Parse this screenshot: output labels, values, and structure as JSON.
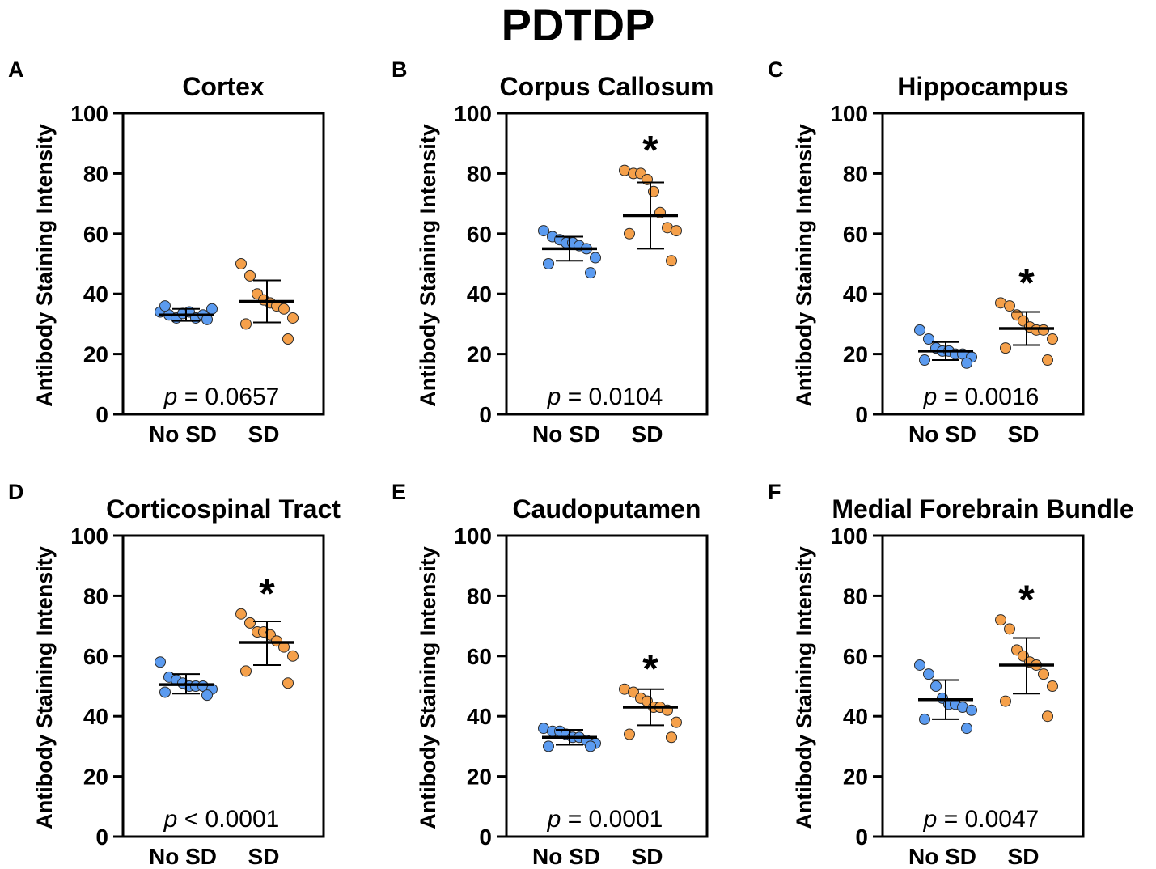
{
  "figure_title": "PDTDP",
  "colors": {
    "no_sd": "#5b9bf0",
    "sd": "#f5a04a",
    "axis": "#000000",
    "marker_edge": "#2a2a2a"
  },
  "chart_data": [
    {
      "type": "scatter",
      "panel_label": "A",
      "title": "Cortex",
      "ylabel": "Antibody Staining Intensity",
      "ylim": [
        0,
        100
      ],
      "yticks": [
        0,
        20,
        40,
        60,
        80,
        100
      ],
      "categories": [
        "No SD",
        "SD"
      ],
      "series": [
        {
          "name": "No SD",
          "values": [
            34,
            33,
            32,
            33.5,
            34,
            32,
            33,
            35,
            36,
            31.5
          ],
          "mean": 33,
          "sd_low": 31,
          "sd_high": 35
        },
        {
          "name": "SD",
          "values": [
            50,
            46,
            40,
            38,
            37,
            36,
            35,
            32,
            30,
            25
          ],
          "mean": 37.5,
          "sd_low": 30.5,
          "sd_high": 44.5
        }
      ],
      "significance": "",
      "p_prefix": "p",
      "p_text": " = 0.0657"
    },
    {
      "type": "scatter",
      "panel_label": "B",
      "title": "Corpus Callosum",
      "ylabel": "Antibody Staining Intensity",
      "ylim": [
        0,
        100
      ],
      "yticks": [
        0,
        20,
        40,
        60,
        80,
        100
      ],
      "categories": [
        "No SD",
        "SD"
      ],
      "series": [
        {
          "name": "No SD",
          "values": [
            61,
            59,
            58,
            57,
            57,
            56,
            55,
            52,
            50,
            47
          ],
          "mean": 55,
          "sd_low": 51,
          "sd_high": 59
        },
        {
          "name": "SD",
          "values": [
            81,
            80,
            80,
            78,
            74,
            67,
            62,
            61,
            60,
            51
          ],
          "mean": 66,
          "sd_low": 55,
          "sd_high": 77
        }
      ],
      "significance": "*",
      "p_prefix": "p",
      "p_text": " = 0.0104"
    },
    {
      "type": "scatter",
      "panel_label": "C",
      "title": "Hippocampus",
      "ylabel": "Antibody Staining Intensity",
      "ylim": [
        0,
        100
      ],
      "yticks": [
        0,
        20,
        40,
        60,
        80,
        100
      ],
      "categories": [
        "No SD",
        "SD"
      ],
      "series": [
        {
          "name": "No SD",
          "values": [
            28,
            25,
            22,
            21,
            21,
            20,
            20,
            19,
            18,
            17
          ],
          "mean": 21,
          "sd_low": 18,
          "sd_high": 24
        },
        {
          "name": "SD",
          "values": [
            37,
            36,
            33,
            31,
            29,
            28,
            28,
            25,
            22,
            18
          ],
          "mean": 28.5,
          "sd_low": 23,
          "sd_high": 34
        }
      ],
      "significance": "*",
      "p_prefix": "p",
      "p_text": " = 0.0016"
    },
    {
      "type": "scatter",
      "panel_label": "D",
      "title": "Corticospinal Tract",
      "ylabel": "Antibody Staining Intensity",
      "ylim": [
        0,
        100
      ],
      "yticks": [
        0,
        20,
        40,
        60,
        80,
        100
      ],
      "categories": [
        "No SD",
        "SD"
      ],
      "series": [
        {
          "name": "No SD",
          "values": [
            58,
            53,
            52,
            51,
            50,
            50,
            50,
            49,
            48,
            47
          ],
          "mean": 50.5,
          "sd_low": 47.5,
          "sd_high": 54
        },
        {
          "name": "SD",
          "values": [
            74,
            71,
            68,
            68,
            67,
            65,
            63,
            60,
            55,
            51
          ],
          "mean": 64.5,
          "sd_low": 57,
          "sd_high": 71.5
        }
      ],
      "significance": "*",
      "p_prefix": "p",
      "p_text": " < 0.0001"
    },
    {
      "type": "scatter",
      "panel_label": "E",
      "title": "Caudoputamen",
      "ylabel": "Antibody Staining Intensity",
      "ylim": [
        0,
        100
      ],
      "yticks": [
        0,
        20,
        40,
        60,
        80,
        100
      ],
      "categories": [
        "No SD",
        "SD"
      ],
      "series": [
        {
          "name": "No SD",
          "values": [
            36,
            35,
            35,
            34,
            33,
            33,
            32,
            31,
            30,
            30
          ],
          "mean": 33,
          "sd_low": 30.5,
          "sd_high": 35.5
        },
        {
          "name": "SD",
          "values": [
            49,
            48,
            46,
            45,
            43,
            43,
            42,
            38,
            34,
            33
          ],
          "mean": 43,
          "sd_low": 37,
          "sd_high": 49
        }
      ],
      "significance": "*",
      "p_prefix": "p",
      "p_text": " = 0.0001"
    },
    {
      "type": "scatter",
      "panel_label": "F",
      "title": "Medial Forebrain Bundle",
      "ylabel": "Antibody Staining Intensity",
      "ylim": [
        0,
        100
      ],
      "yticks": [
        0,
        20,
        40,
        60,
        80,
        100
      ],
      "categories": [
        "No SD",
        "SD"
      ],
      "series": [
        {
          "name": "No SD",
          "values": [
            57,
            54,
            50,
            46,
            44,
            44,
            43,
            42,
            39,
            36
          ],
          "mean": 45.5,
          "sd_low": 39,
          "sd_high": 52
        },
        {
          "name": "SD",
          "values": [
            72,
            69,
            62,
            60,
            58,
            57,
            54,
            50,
            45,
            40
          ],
          "mean": 57,
          "sd_low": 47.5,
          "sd_high": 66
        }
      ],
      "significance": "*",
      "p_prefix": "p",
      "p_text": " = 0.0047"
    }
  ]
}
